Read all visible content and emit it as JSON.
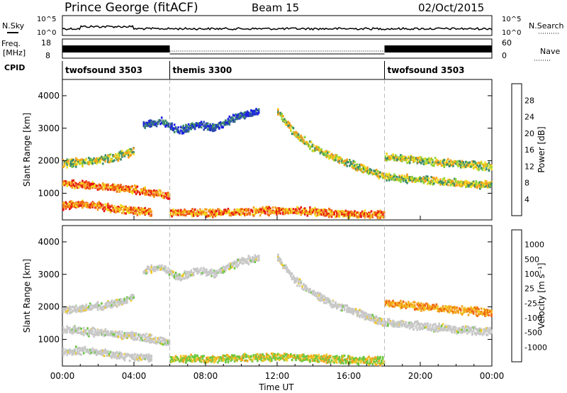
{
  "header": {
    "site": "Prince George (fitACF)",
    "beam": "Beam 15",
    "date": "02/Oct/2015"
  },
  "status_panels": {
    "nsky_label": "N.Sky",
    "nsearch_label": "N.Search",
    "noise_ticks_left": [
      "10^5",
      "10^0"
    ],
    "noise_ticks_right": [
      "10^5",
      "10^0"
    ],
    "freq_label_line1": "Freq.",
    "freq_label_line2": "[MHz]",
    "freq_ticks": [
      "18",
      "8"
    ],
    "nave_label": "Nave",
    "nave_ticks": [
      "60",
      "0"
    ],
    "cpid_label": "CPID",
    "cpid_segments": [
      {
        "name": "twofsound 3503",
        "start_hour": 0,
        "end_hour": 6
      },
      {
        "name": "themis 3300",
        "start_hour": 6,
        "end_hour": 18
      },
      {
        "name": "twofsound 3503",
        "start_hour": 18,
        "end_hour": 24
      }
    ]
  },
  "x_axis": {
    "title": "Time UT",
    "ticks": [
      "00:00",
      "04:00",
      "08:00",
      "12:00",
      "16:00",
      "20:00",
      "00:00"
    ],
    "hours": [
      0,
      4,
      8,
      12,
      16,
      20,
      24
    ]
  },
  "chart_data": [
    {
      "type": "heatmap",
      "title": "",
      "xlabel": "Time UT",
      "ylabel": "Slant Range [km]",
      "xlim": [
        0,
        24
      ],
      "ylim": [
        180,
        4500
      ],
      "yticks": [
        "1000",
        "2000",
        "3000",
        "4000"
      ],
      "yvals": [
        1000,
        2000,
        3000,
        4000
      ],
      "colorbar": {
        "label": "Power [dB]",
        "ticks": [
          "4",
          "8",
          "12",
          "16",
          "20",
          "24",
          "28"
        ],
        "colors": [
          "#1e1ee6",
          "#2e4ea8",
          "#3a8a6a",
          "#8ed23a",
          "#f0dc1e",
          "#f5a01e",
          "#f06414",
          "#e61414"
        ]
      },
      "echo_bands": [
        {
          "t": [
            0.0,
            1.0,
            2.0,
            3.0,
            4.0,
            5.0,
            6.0
          ],
          "r": [
            1300,
            1250,
            1200,
            1150,
            1100,
            1000,
            900
          ],
          "level": "high"
        },
        {
          "t": [
            0.0,
            1.0,
            2.0,
            3.0,
            4.0
          ],
          "r": [
            1900,
            1950,
            2000,
            2100,
            2300
          ],
          "level": "mid"
        },
        {
          "t": [
            0.0,
            1.0,
            2.0,
            3.0,
            4.0,
            5.0
          ],
          "r": [
            600,
            650,
            600,
            500,
            450,
            400
          ],
          "level": "high"
        },
        {
          "t": [
            4.5,
            5.5,
            6.5,
            7.5,
            8.5,
            9.5,
            10.5,
            11.0
          ],
          "r": [
            3100,
            3200,
            2900,
            3100,
            3000,
            3300,
            3450,
            3500
          ],
          "level": "low"
        },
        {
          "t": [
            12.0,
            13.0,
            14.0,
            15.0,
            16.0,
            17.0,
            18.0,
            19.0,
            20.0,
            21.0,
            22.0,
            23.0,
            24.0
          ],
          "r": [
            3500,
            2800,
            2400,
            2100,
            1900,
            1700,
            1500,
            1450,
            1400,
            1350,
            1300,
            1250,
            1250
          ],
          "level": "mid"
        },
        {
          "t": [
            18.0,
            19.0,
            20.0,
            21.0,
            22.0,
            23.0,
            24.0
          ],
          "r": [
            2100,
            2050,
            2000,
            1950,
            1900,
            1850,
            1800
          ],
          "level": "mid"
        },
        {
          "t": [
            6.0,
            8.0,
            10.0,
            12.0,
            14.0,
            16.0,
            18.0
          ],
          "r": [
            400,
            380,
            420,
            450,
            420,
            360,
            320
          ],
          "level": "high"
        }
      ]
    },
    {
      "type": "heatmap",
      "title": "",
      "xlabel": "Time UT",
      "ylabel": "Slant Range [km]",
      "xlim": [
        0,
        24
      ],
      "ylim": [
        180,
        4500
      ],
      "yticks": [
        "1000",
        "2000",
        "3000",
        "4000"
      ],
      "yvals": [
        1000,
        2000,
        3000,
        4000
      ],
      "colorbar": {
        "label": "Velocity [m s⁻¹]",
        "ticks": [
          "1000",
          "500",
          "100",
          "25",
          "-25",
          "-100",
          "-500",
          "-1000"
        ],
        "colors": [
          "#1e3cc8",
          "#3276b4",
          "#2e8a50",
          "#6ac840",
          "#c8c8c8",
          "#f0c828",
          "#f5a01e",
          "#f06414",
          "#e61414"
        ]
      },
      "echo_bands": [
        {
          "t": [
            0.0,
            1.0,
            2.0,
            3.0,
            4.0,
            5.0,
            6.0
          ],
          "r": [
            1300,
            1250,
            1200,
            1150,
            1100,
            1000,
            900
          ],
          "level": "ground"
        },
        {
          "t": [
            0.0,
            1.0,
            2.0,
            3.0,
            4.0
          ],
          "r": [
            1900,
            1950,
            2000,
            2100,
            2300
          ],
          "level": "ground"
        },
        {
          "t": [
            0.0,
            1.0,
            2.0,
            3.0,
            4.0,
            5.0
          ],
          "r": [
            600,
            650,
            600,
            500,
            450,
            400
          ],
          "level": "ground"
        },
        {
          "t": [
            4.5,
            5.5,
            6.5,
            7.5,
            8.5,
            9.5,
            10.5,
            11.0
          ],
          "r": [
            3100,
            3200,
            2900,
            3100,
            3000,
            3300,
            3450,
            3500
          ],
          "level": "ground"
        },
        {
          "t": [
            12.0,
            13.0,
            14.0,
            15.0,
            16.0,
            17.0,
            18.0,
            19.0,
            20.0,
            21.0,
            22.0,
            23.0,
            24.0
          ],
          "r": [
            3500,
            2800,
            2400,
            2100,
            1900,
            1700,
            1500,
            1450,
            1400,
            1350,
            1300,
            1250,
            1250
          ],
          "level": "ground"
        },
        {
          "t": [
            18.0,
            19.0,
            20.0,
            21.0,
            22.0,
            23.0,
            24.0
          ],
          "r": [
            2100,
            2050,
            2000,
            1950,
            1900,
            1850,
            1800
          ],
          "level": "away"
        },
        {
          "t": [
            6.0,
            8.0,
            10.0,
            12.0,
            14.0,
            16.0,
            18.0
          ],
          "r": [
            400,
            380,
            420,
            450,
            420,
            360,
            320
          ],
          "level": "mixed"
        }
      ]
    }
  ]
}
